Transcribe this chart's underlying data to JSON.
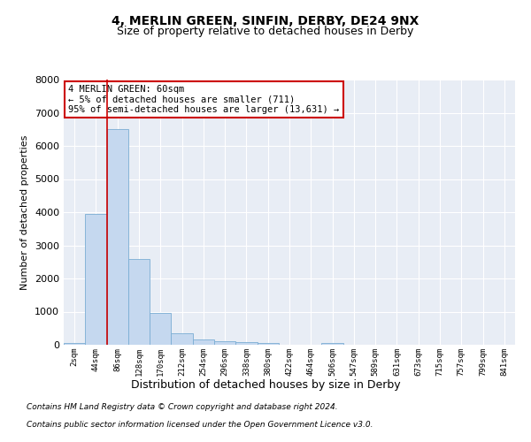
{
  "title": "4, MERLIN GREEN, SINFIN, DERBY, DE24 9NX",
  "subtitle": "Size of property relative to detached houses in Derby",
  "xlabel": "Distribution of detached houses by size in Derby",
  "ylabel": "Number of detached properties",
  "categories": [
    "2sqm",
    "44sqm",
    "86sqm",
    "128sqm",
    "170sqm",
    "212sqm",
    "254sqm",
    "296sqm",
    "338sqm",
    "380sqm",
    "422sqm",
    "464sqm",
    "506sqm",
    "547sqm",
    "589sqm",
    "631sqm",
    "673sqm",
    "715sqm",
    "757sqm",
    "799sqm",
    "841sqm"
  ],
  "values": [
    60,
    3950,
    6500,
    2600,
    960,
    340,
    150,
    120,
    70,
    50,
    0,
    0,
    60,
    0,
    0,
    0,
    0,
    0,
    0,
    0,
    0
  ],
  "bar_color": "#c5d8ef",
  "bar_edge_color": "#7aadd4",
  "vline_x": 1.5,
  "vline_color": "#cc0000",
  "annotation_text": "4 MERLIN GREEN: 60sqm\n← 5% of detached houses are smaller (711)\n95% of semi-detached houses are larger (13,631) →",
  "annotation_box_color": "#ffffff",
  "annotation_box_edge": "#cc0000",
  "ylim": [
    0,
    8000
  ],
  "yticks": [
    0,
    1000,
    2000,
    3000,
    4000,
    5000,
    6000,
    7000,
    8000
  ],
  "background_color": "#e8edf5",
  "footer1": "Contains HM Land Registry data © Crown copyright and database right 2024.",
  "footer2": "Contains public sector information licensed under the Open Government Licence v3.0.",
  "title_fontsize": 10,
  "subtitle_fontsize": 9
}
